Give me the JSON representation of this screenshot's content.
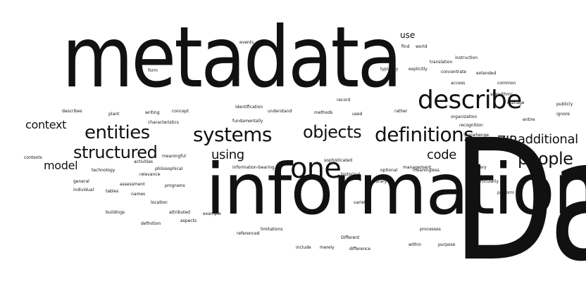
{
  "cloud": {
    "words": [
      "metadata",
      "information",
      "Data",
      "describe",
      "definitions",
      "systems",
      "one",
      "entities",
      "structured",
      "objects",
      "people",
      "context",
      "model",
      "code",
      "using",
      "additional",
      "ZIP",
      "use",
      "events",
      "find",
      "world",
      "translation",
      "instruction",
      "explicitly",
      "concentrate",
      "extended",
      "access",
      "common",
      "algorithms",
      "manage",
      "publicly",
      "ignore",
      "writing",
      "concept",
      "form",
      "identification",
      "understand",
      "describes",
      "used",
      "plant",
      "fundamentally",
      "characteristics",
      "technology",
      "meaningful",
      "philosophical",
      "activities",
      "relevance",
      "Different",
      "management",
      "limitations",
      "processes",
      "purpose",
      "perform",
      "within",
      "include",
      "merely",
      "difference",
      "referenced",
      "aspects",
      "example",
      "attributed",
      "definition",
      "buildings",
      "location",
      "names",
      "programs",
      "assessment",
      "tables",
      "general",
      "individual",
      "contexts",
      "optional",
      "meaningless",
      "Stonehenge",
      "discovery",
      "recognition",
      "organization",
      "sophisticated",
      "information-bearing",
      "methods",
      "historical",
      "library",
      "variety",
      "typically",
      "record",
      "rather",
      "particularly",
      "entire"
    ]
  }
}
